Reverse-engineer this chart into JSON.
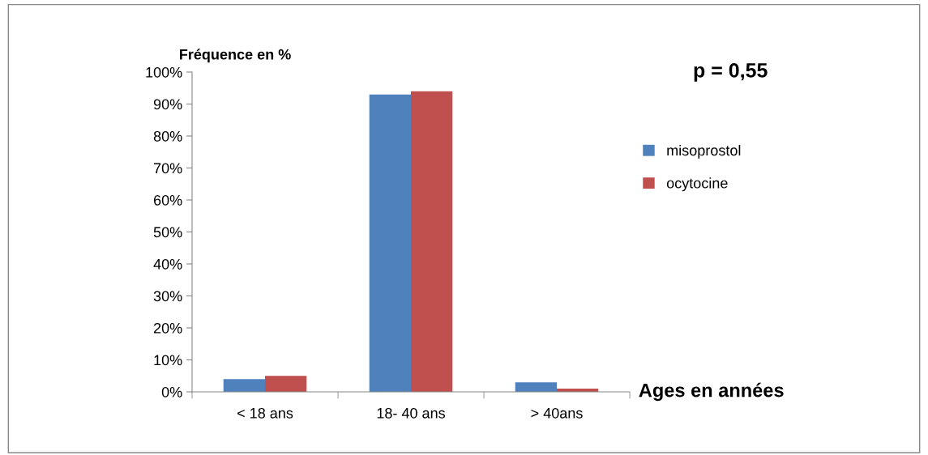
{
  "chart_data": {
    "type": "bar",
    "ylabel": "Fréquence en %",
    "xlabel": "Ages en années",
    "annotations": [
      "p = 0,55"
    ],
    "categories": [
      "< 18 ans",
      "18- 40 ans",
      "> 40ans"
    ],
    "series": [
      {
        "name": "misoprostol",
        "color": "#4f81bd",
        "values": [
          4,
          93,
          3
        ]
      },
      {
        "name": "ocytocine",
        "color": "#c0504d",
        "values": [
          5,
          94,
          1
        ]
      }
    ],
    "ylim": [
      0,
      100
    ],
    "yticks": [
      {
        "value": 0,
        "label": "0%"
      },
      {
        "value": 10,
        "label": "10%"
      },
      {
        "value": 20,
        "label": "20%"
      },
      {
        "value": 30,
        "label": "30%"
      },
      {
        "value": 40,
        "label": "40%"
      },
      {
        "value": 50,
        "label": "50%"
      },
      {
        "value": 60,
        "label": "60%"
      },
      {
        "value": 70,
        "label": "70%"
      },
      {
        "value": 80,
        "label": "80%"
      },
      {
        "value": 90,
        "label": "90%"
      },
      {
        "value": 100,
        "label": "100%"
      }
    ],
    "legend": "right",
    "grid": false
  }
}
